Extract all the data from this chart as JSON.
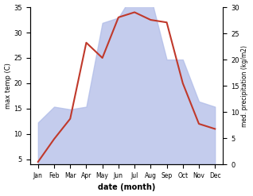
{
  "months": [
    "Jan",
    "Feb",
    "Mar",
    "Apr",
    "May",
    "Jun",
    "Jul",
    "Aug",
    "Sep",
    "Oct",
    "Nov",
    "Dec"
  ],
  "month_indices": [
    0,
    1,
    2,
    3,
    4,
    5,
    6,
    7,
    8,
    9,
    10,
    11
  ],
  "temperature": [
    4.5,
    9,
    13,
    28,
    25,
    33,
    34,
    32.5,
    32,
    20,
    12,
    11
  ],
  "precipitation": [
    8,
    11,
    10.5,
    11,
    27,
    28,
    33,
    32,
    20,
    20,
    12,
    11
  ],
  "temp_ylim": [
    4,
    35
  ],
  "temp_yticks": [
    5,
    10,
    15,
    20,
    25,
    30,
    35
  ],
  "precip_ylim": [
    0,
    30
  ],
  "precip_yticks": [
    0,
    5,
    10,
    15,
    20,
    25,
    30
  ],
  "temp_color": "#c0392b",
  "precip_fill_color": "#b0bce8",
  "precip_fill_alpha": 0.75,
  "xlabel": "date (month)",
  "ylabel_left": "max temp (C)",
  "ylabel_right": "med. precipitation (kg/m2)",
  "background_color": "#ffffff",
  "fig_width": 3.18,
  "fig_height": 2.47
}
